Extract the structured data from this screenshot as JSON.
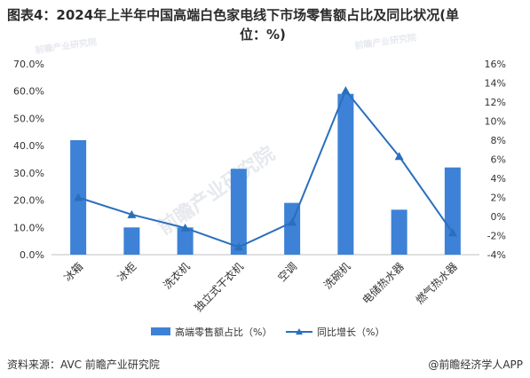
{
  "title": {
    "line1": "图表4：2024年上半年中国高端白色家电线下市场零售额占比及同比状况(单",
    "line2": "位：%)"
  },
  "chart_data": {
    "type": "bar",
    "categories": [
      "冰箱",
      "冰柜",
      "洗衣机",
      "独立式干衣机",
      "空调",
      "洗碗机",
      "电储热水器",
      "燃气热水器"
    ],
    "series": [
      {
        "name": "高端零售额占比（%）",
        "type": "bar",
        "axis": "left",
        "color": "#3d82d6",
        "values": [
          42.0,
          10.0,
          10.0,
          31.5,
          19.0,
          59.0,
          16.5,
          32.0
        ]
      },
      {
        "name": "同比增长（%）",
        "type": "line",
        "axis": "right",
        "color": "#2a6fbd",
        "values": [
          2.0,
          0.2,
          -1.2,
          -3.2,
          -0.6,
          13.2,
          6.3,
          -1.7
        ]
      }
    ],
    "y_left": {
      "min": 0,
      "max": 70,
      "step": 10,
      "tick_labels": [
        "0.0%",
        "10.0%",
        "20.0%",
        "30.0%",
        "40.0%",
        "50.0%",
        "60.0%",
        "70.0%"
      ]
    },
    "y_right": {
      "min": -4,
      "max": 16,
      "step": 2,
      "tick_labels": [
        "-4%",
        "-2%",
        "0%",
        "2%",
        "4%",
        "6%",
        "8%",
        "10%",
        "12%",
        "14%",
        "16%"
      ]
    },
    "grid": false,
    "legend": "bottom-center"
  },
  "watermark": "前瞻产业研究院",
  "footer": {
    "source": "资料来源：AVC 前瞻产业研究院",
    "brand": "@前瞻经济学人APP"
  }
}
